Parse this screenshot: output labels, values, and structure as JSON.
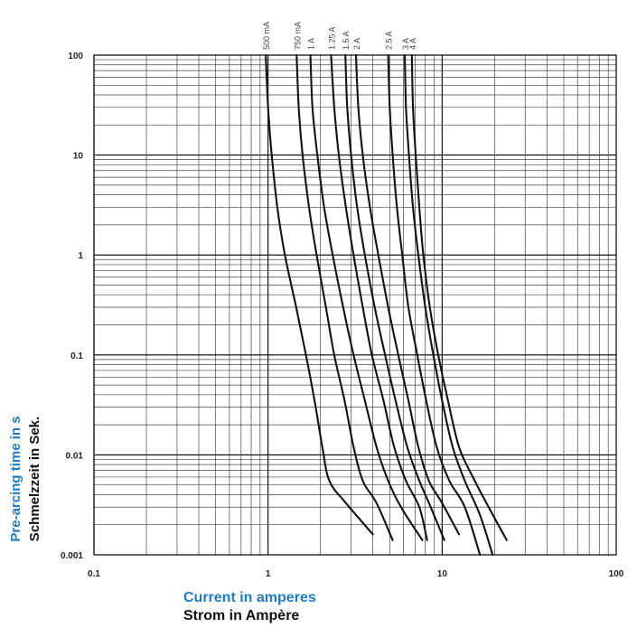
{
  "chart_data": {
    "type": "line",
    "x_scale": "log",
    "y_scale": "log",
    "xlim": [
      0.1,
      100
    ],
    "ylim": [
      0.001,
      100
    ],
    "x_ticks": [
      "0.1",
      "1",
      "10",
      "100"
    ],
    "y_ticks": [
      "0.001",
      "0.01",
      "0.1",
      "1",
      "10",
      "100"
    ],
    "xlabel": "Current in amperes",
    "xlabel_de": "Strom in Ampère",
    "ylabel": "Pre-arcing time in s",
    "ylabel_de": "Schmelzzeit in Sek.",
    "grid": true,
    "series": [
      {
        "name": "500 mA",
        "points": [
          [
            0.97,
            100
          ],
          [
            1.0,
            30
          ],
          [
            1.05,
            10
          ],
          [
            1.13,
            3
          ],
          [
            1.25,
            1
          ],
          [
            1.45,
            0.3
          ],
          [
            1.65,
            0.1
          ],
          [
            1.85,
            0.035
          ],
          [
            2.05,
            0.012
          ],
          [
            2.25,
            0.0055
          ],
          [
            2.8,
            0.0033
          ],
          [
            4.0,
            0.0016
          ]
        ]
      },
      {
        "name": "750 mA",
        "points": [
          [
            1.46,
            100
          ],
          [
            1.5,
            30
          ],
          [
            1.58,
            10
          ],
          [
            1.72,
            3
          ],
          [
            1.9,
            1
          ],
          [
            2.15,
            0.3
          ],
          [
            2.4,
            0.1
          ],
          [
            2.75,
            0.035
          ],
          [
            3.1,
            0.012
          ],
          [
            3.5,
            0.0055
          ],
          [
            4.2,
            0.0033
          ],
          [
            5.2,
            0.0014
          ]
        ]
      },
      {
        "name": "1 A",
        "points": [
          [
            1.75,
            100
          ],
          [
            1.8,
            30
          ],
          [
            1.92,
            10
          ],
          [
            2.1,
            3
          ],
          [
            2.35,
            1
          ],
          [
            2.7,
            0.3
          ],
          [
            3.1,
            0.1
          ],
          [
            3.6,
            0.035
          ],
          [
            4.2,
            0.012
          ],
          [
            4.9,
            0.0055
          ],
          [
            5.8,
            0.003
          ],
          [
            7.7,
            0.0014
          ]
        ]
      },
      {
        "name": "1.25 A",
        "points": [
          [
            2.3,
            100
          ],
          [
            2.4,
            30
          ],
          [
            2.55,
            10
          ],
          [
            2.8,
            3
          ],
          [
            3.1,
            1
          ],
          [
            3.5,
            0.3
          ],
          [
            3.95,
            0.1
          ],
          [
            4.6,
            0.035
          ],
          [
            5.3,
            0.012
          ],
          [
            6.2,
            0.0055
          ],
          [
            7.4,
            0.003
          ],
          [
            8.2,
            0.0014
          ]
        ]
      },
      {
        "name": "1.5 A",
        "points": [
          [
            2.78,
            100
          ],
          [
            2.85,
            30
          ],
          [
            3.0,
            10
          ],
          [
            3.25,
            3
          ],
          [
            3.6,
            1
          ],
          [
            4.1,
            0.3
          ],
          [
            4.7,
            0.1
          ],
          [
            5.4,
            0.035
          ],
          [
            6.3,
            0.012
          ],
          [
            7.4,
            0.0055
          ],
          [
            8.6,
            0.003
          ],
          [
            10.3,
            0.0014
          ]
        ]
      },
      {
        "name": "2 A",
        "points": [
          [
            3.2,
            100
          ],
          [
            3.3,
            30
          ],
          [
            3.5,
            10
          ],
          [
            3.85,
            3
          ],
          [
            4.3,
            1
          ],
          [
            4.9,
            0.3
          ],
          [
            5.6,
            0.1
          ],
          [
            6.4,
            0.035
          ],
          [
            7.3,
            0.012
          ],
          [
            8.4,
            0.0055
          ],
          [
            10.0,
            0.0033
          ],
          [
            12.5,
            0.0016
          ]
        ]
      },
      {
        "name": "2.5 A",
        "points": [
          [
            4.9,
            100
          ],
          [
            5.0,
            30
          ],
          [
            5.2,
            10
          ],
          [
            5.5,
            3
          ],
          [
            5.9,
            1
          ],
          [
            6.4,
            0.3
          ],
          [
            7.2,
            0.1
          ],
          [
            8.1,
            0.035
          ],
          [
            9.3,
            0.012
          ],
          [
            11.0,
            0.0055
          ],
          [
            13.5,
            0.003
          ],
          [
            16.5,
            0.001
          ]
        ]
      },
      {
        "name": "3 A",
        "points": [
          [
            6.1,
            100
          ],
          [
            6.2,
            30
          ],
          [
            6.45,
            10
          ],
          [
            6.8,
            3
          ],
          [
            7.3,
            1
          ],
          [
            8.0,
            0.3
          ],
          [
            8.9,
            0.1
          ],
          [
            10.0,
            0.035
          ],
          [
            11.5,
            0.012
          ],
          [
            13.5,
            0.0055
          ],
          [
            16.5,
            0.0025
          ],
          [
            19.5,
            0.001
          ]
        ]
      },
      {
        "name": "4 A",
        "points": [
          [
            6.7,
            100
          ],
          [
            6.8,
            30
          ],
          [
            7.05,
            10
          ],
          [
            7.4,
            3
          ],
          [
            7.8,
            1
          ],
          [
            8.5,
            0.3
          ],
          [
            9.5,
            0.1
          ],
          [
            10.8,
            0.035
          ],
          [
            12.5,
            0.012
          ],
          [
            15.0,
            0.006
          ],
          [
            18.5,
            0.003
          ],
          [
            23.5,
            0.0014
          ]
        ]
      }
    ]
  }
}
